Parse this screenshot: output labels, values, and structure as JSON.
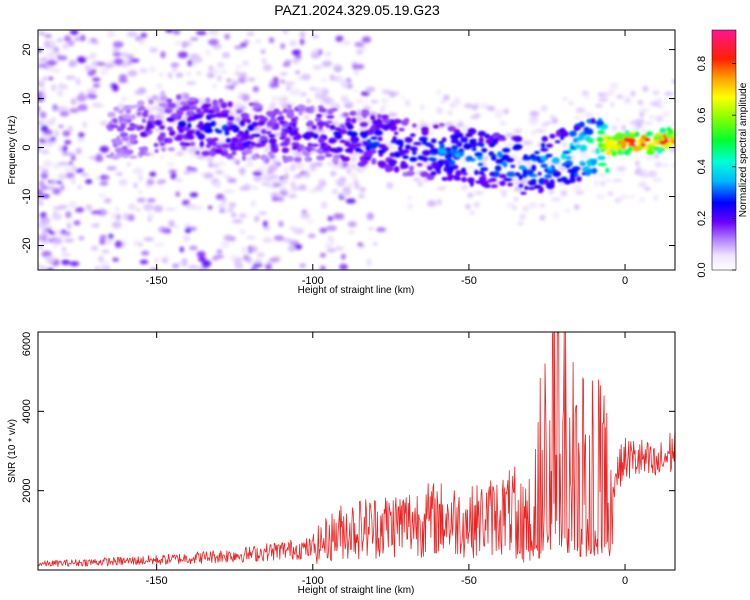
{
  "title": "PAZ1.2024.329.05.19.G23",
  "chart_data": [
    {
      "type": "heatmap",
      "xlabel": "Height of straight line (km)",
      "ylabel": "Frequency (Hz)",
      "xlim": [
        -188,
        16
      ],
      "ylim": [
        -25,
        24
      ],
      "xticks": [
        -150,
        -100,
        -50,
        0
      ],
      "yticks": [
        -20,
        -10,
        0,
        10,
        20
      ],
      "grid": false,
      "colorbar": {
        "label": "Normalized spectral amplitude",
        "range": [
          0,
          0.93
        ],
        "ticks": [
          0.0,
          0.2,
          0.4,
          0.6,
          0.8
        ],
        "colormap": [
          "#ffffff",
          "#e9d5ff",
          "#b888ff",
          "#7b00ff",
          "#0000ff",
          "#00e0ff",
          "#00ff60",
          "#aaff00",
          "#ffff00",
          "#ff9900",
          "#ff0000",
          "#ff1493"
        ]
      },
      "ridge": {
        "x": [
          -160,
          -145,
          -130,
          -115,
          -100,
          -85,
          -70,
          -55,
          -40,
          -30,
          -20,
          -10,
          0,
          10,
          15
        ],
        "y": [
          3,
          5,
          4,
          3,
          3,
          2,
          0,
          -1,
          -3,
          -4,
          -2,
          0,
          1,
          1,
          2
        ],
        "amplitude": [
          0.15,
          0.2,
          0.25,
          0.2,
          0.2,
          0.25,
          0.25,
          0.3,
          0.3,
          0.3,
          0.35,
          0.45,
          0.85,
          0.75,
          0.8
        ]
      }
    },
    {
      "type": "line",
      "xlabel": "Height of straight line (km)",
      "ylabel": "SNR (10 * v/v)",
      "xlim": [
        -188,
        16
      ],
      "ylim": [
        0,
        6000
      ],
      "xticks": [
        -150,
        -100,
        -50,
        0
      ],
      "yticks": [
        2000,
        4000,
        6000
      ],
      "grid": false,
      "color": "#ee2222",
      "series": [
        {
          "x": [
            -188,
            -170,
            -150,
            -130,
            -120,
            -110,
            -100,
            -95,
            -90,
            -80,
            -70,
            -60,
            -50,
            -40,
            -35,
            -30,
            -28,
            -25,
            -22,
            -20,
            -18,
            -15,
            -12,
            -10,
            -8,
            -6,
            -5,
            -3,
            0,
            5,
            10,
            15
          ],
          "y": [
            150,
            200,
            250,
            350,
            400,
            500,
            550,
            800,
            1000,
            1100,
            1200,
            1300,
            1200,
            1400,
            1500,
            1600,
            2500,
            3500,
            4200,
            3800,
            3000,
            2800,
            3200,
            3600,
            4200,
            3400,
            1800,
            2400,
            2800,
            2800,
            2600,
            3000
          ]
        }
      ]
    }
  ]
}
